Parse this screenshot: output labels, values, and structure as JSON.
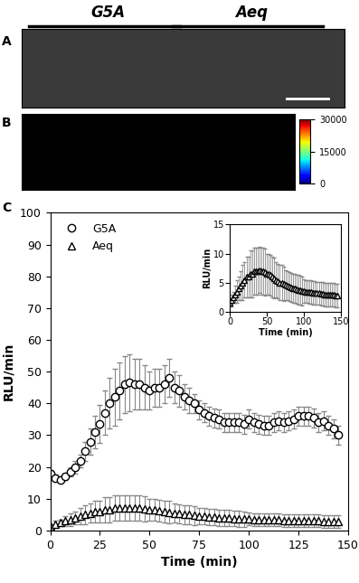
{
  "panel_labels": [
    "A",
    "B",
    "C"
  ],
  "header": [
    "G5A",
    "Aeq"
  ],
  "luminescence_colorbar": {
    "range": [
      0,
      30000
    ],
    "ticks": [
      0,
      15000,
      30000
    ]
  },
  "chart_data": {
    "type": "line",
    "x_label": "Time (min)",
    "y_label": "RLU/min",
    "xlim": [
      0,
      150
    ],
    "ylim": [
      0,
      100
    ],
    "xticks": [
      0,
      25,
      50,
      75,
      100,
      125,
      150
    ],
    "yticks": [
      0,
      10,
      20,
      30,
      40,
      50,
      60,
      70,
      80,
      90,
      100
    ],
    "legend": "upper left",
    "grid": false,
    "x": [
      0,
      2.5,
      5,
      7.5,
      10,
      12.5,
      15,
      17.5,
      20,
      22.5,
      25,
      27.5,
      30,
      32.5,
      35,
      37.5,
      40,
      42.5,
      45,
      47.5,
      50,
      52.5,
      55,
      57.5,
      60,
      62.5,
      65,
      67.5,
      70,
      72.5,
      75,
      77.5,
      80,
      82.5,
      85,
      87.5,
      90,
      92.5,
      95,
      97.5,
      100,
      102.5,
      105,
      107.5,
      110,
      112.5,
      115,
      117.5,
      120,
      122.5,
      125,
      127.5,
      130,
      132.5,
      135,
      137.5,
      140,
      142.5,
      145
    ],
    "series": [
      {
        "name": "G5A",
        "color": "#000000",
        "marker": "circle",
        "line_style": "none",
        "values": [
          18,
          16.5,
          16,
          17,
          18.5,
          20,
          22,
          25,
          28,
          31,
          33.5,
          37,
          40,
          42,
          44,
          46,
          46.5,
          46,
          46,
          45,
          44,
          45,
          45,
          46,
          48,
          45,
          44,
          42,
          41,
          40,
          38,
          37,
          36,
          35.5,
          35,
          34,
          34,
          34,
          34,
          33.5,
          35,
          34,
          33.5,
          33,
          33,
          34,
          34.5,
          34,
          34.5,
          35,
          36,
          36,
          36,
          35.5,
          34,
          34.5,
          33,
          32,
          30
        ],
        "error": [
          1,
          1,
          1,
          1,
          1.5,
          2,
          2,
          3,
          4,
          5,
          6,
          7,
          8,
          9,
          9,
          9,
          9,
          8,
          8,
          7,
          6,
          6,
          6,
          6,
          6,
          5,
          5,
          4,
          4,
          3,
          3,
          3,
          3,
          3,
          3,
          3,
          3,
          3,
          3,
          3,
          3,
          3,
          3,
          3,
          3,
          3,
          3,
          3,
          3,
          3,
          3,
          3,
          3,
          3,
          3,
          3,
          3,
          3,
          3
        ]
      },
      {
        "name": "Aeq",
        "color": "#000000",
        "marker": "triangle",
        "line_style": "none",
        "values": [
          1.5,
          2,
          2.5,
          3,
          3.5,
          4,
          4.5,
          5,
          5.5,
          6,
          6,
          6.5,
          6.5,
          7,
          7,
          7,
          7.2,
          7,
          7,
          6.8,
          6.5,
          6.5,
          6.3,
          6,
          5.8,
          5.5,
          5.3,
          5,
          5,
          4.8,
          4.6,
          4.5,
          4.3,
          4.2,
          4,
          4,
          3.9,
          3.8,
          3.7,
          3.6,
          3.6,
          3.5,
          3.5,
          3.4,
          3.4,
          3.3,
          3.3,
          3.2,
          3.2,
          3.1,
          3.1,
          3,
          3,
          3,
          3,
          2.9,
          2.9,
          2.8,
          2.8
        ],
        "error": [
          0.5,
          1,
          1,
          1.5,
          2,
          2,
          2.5,
          3,
          3,
          3.5,
          3.5,
          4,
          4,
          4,
          4,
          4,
          4,
          4,
          4,
          4,
          3.5,
          3.5,
          3.5,
          3.5,
          3.5,
          3,
          3,
          3,
          3,
          3,
          2.5,
          2.5,
          2.5,
          2.5,
          2.5,
          2.5,
          2.5,
          2.5,
          2.5,
          2.5,
          2,
          2,
          2,
          2,
          2,
          2,
          2,
          2,
          2,
          2,
          2,
          2,
          2,
          2,
          2,
          2,
          2,
          2,
          2
        ]
      }
    ],
    "inset": {
      "series": [
        "Aeq"
      ],
      "x_label": "Time (min)",
      "y_label": "RLU/min",
      "xlim": [
        0,
        150
      ],
      "ylim": [
        0,
        15
      ],
      "xticks": [
        0,
        50,
        100,
        150
      ],
      "yticks": [
        0,
        5,
        10,
        15
      ]
    }
  }
}
